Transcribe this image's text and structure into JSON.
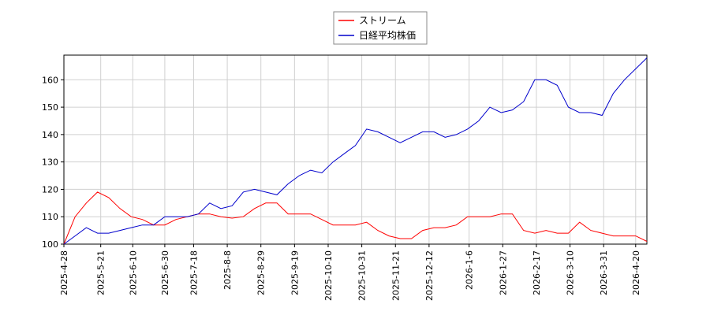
{
  "chart_data": {
    "type": "line",
    "x": [
      "2025-4-28",
      "2025-5-5",
      "2025-5-12",
      "2025-5-19",
      "2025-5-26",
      "2025-6-2",
      "2025-6-9",
      "2025-6-16",
      "2025-6-23",
      "2025-6-30",
      "2025-7-7",
      "2025-7-14",
      "2025-7-21",
      "2025-7-28",
      "2025-8-4",
      "2025-8-11",
      "2025-8-18",
      "2025-8-25",
      "2025-9-1",
      "2025-9-8",
      "2025-9-15",
      "2025-9-22",
      "2025-9-29",
      "2025-10-6",
      "2025-10-13",
      "2025-10-20",
      "2025-10-27",
      "2025-11-3",
      "2025-11-10",
      "2025-11-17",
      "2025-11-24",
      "2025-12-1",
      "2025-12-8",
      "2025-12-15",
      "2025-12-22",
      "2025-12-29",
      "2026-1-5",
      "2026-1-12",
      "2026-1-19",
      "2026-1-26",
      "2026-2-2",
      "2026-2-9",
      "2026-2-16",
      "2026-2-23",
      "2026-3-2",
      "2026-3-9",
      "2026-3-16",
      "2026-3-23",
      "2026-3-30",
      "2026-4-6",
      "2026-4-13",
      "2026-4-20",
      "2026-4-27"
    ],
    "series": [
      {
        "name": "ストリーム",
        "color": "#ff0000",
        "values": [
          100,
          110,
          115,
          119,
          117,
          113,
          110,
          109,
          107,
          107,
          109,
          110,
          111,
          111,
          110,
          109.5,
          110,
          113,
          115,
          115,
          111,
          111,
          111,
          109,
          107,
          107,
          107,
          108,
          105,
          103,
          102,
          102,
          105,
          106,
          106,
          107,
          110,
          110,
          110,
          111,
          111,
          105,
          104,
          105,
          104,
          104,
          108,
          105,
          104,
          103,
          103,
          103,
          101
        ]
      },
      {
        "name": "日経平均株価",
        "color": "#0000cc",
        "values": [
          100,
          103,
          106,
          104,
          104,
          105,
          106,
          107,
          107,
          110,
          110,
          110,
          111,
          115,
          113,
          114,
          119,
          120,
          119,
          118,
          122,
          125,
          127,
          126,
          130,
          133,
          136,
          142,
          141,
          139,
          137,
          139,
          141,
          141,
          139,
          140,
          142,
          145,
          150,
          148,
          149,
          152,
          160,
          160,
          158,
          150,
          148,
          148,
          147,
          155,
          160,
          164,
          168
        ]
      }
    ],
    "xlim": [
      "2025-4-28",
      "2026-4-27"
    ],
    "xticks": [
      "2025-4-28",
      "2025-5-21",
      "2025-6-10",
      "2025-6-30",
      "2025-7-18",
      "2025-8-8",
      "2025-8-29",
      "2025-9-19",
      "2025-10-10",
      "2025-10-31",
      "2025-11-21",
      "2025-12-12",
      "2026-1-6",
      "2026-1-27",
      "2026-2-17",
      "2026-3-10",
      "2026-3-31",
      "2026-4-20"
    ],
    "ylim": [
      100,
      169
    ],
    "yticks": [
      100,
      110,
      120,
      130,
      140,
      150,
      160
    ],
    "grid": true,
    "legend": "top"
  }
}
